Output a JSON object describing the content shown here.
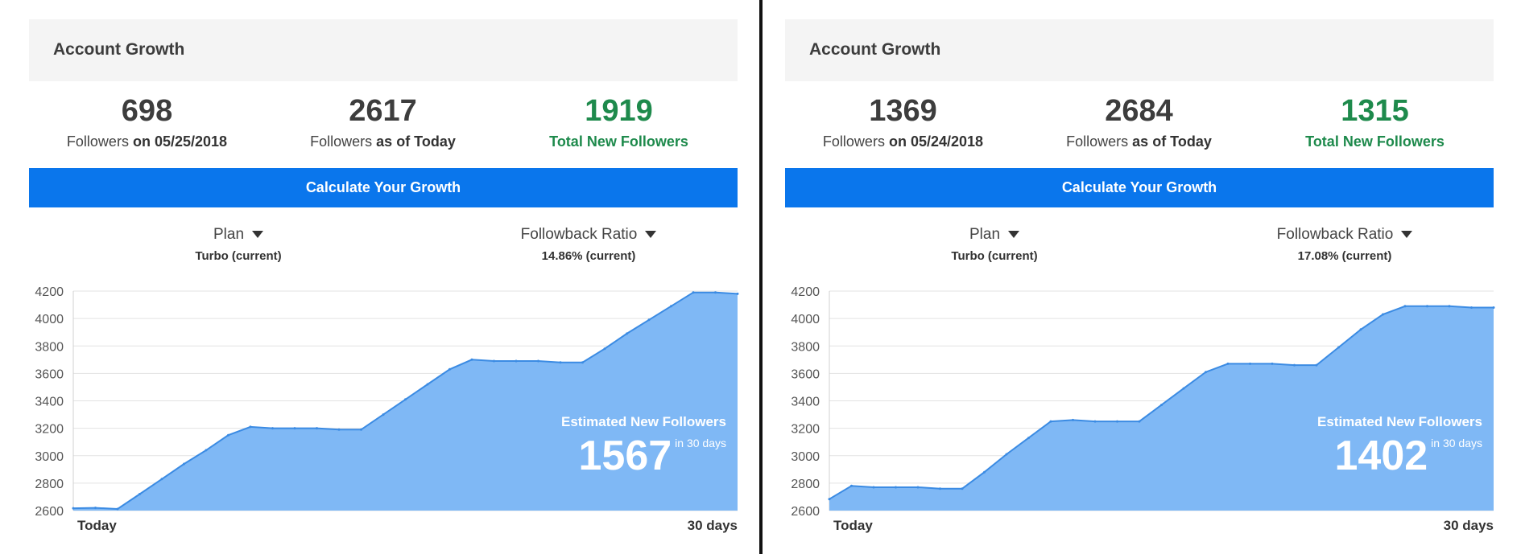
{
  "colors": {
    "accent": "#0a76ec",
    "green": "#1e8a4c",
    "area": "#7fb8f5",
    "line": "#3b8be3"
  },
  "icons": {
    "dropdown": "caret-down-icon"
  },
  "panels": [
    {
      "title": "Account Growth",
      "stats": [
        {
          "value": "698",
          "label_prefix": "Followers",
          "label_bold": "on 05/25/2018"
        },
        {
          "value": "2617",
          "label_prefix": "Followers",
          "label_bold": "as of Today"
        },
        {
          "value": "1919",
          "label": "Total New Followers"
        }
      ],
      "button": "Calculate Your Growth",
      "plan": {
        "label": "Plan",
        "value": "Turbo (current)"
      },
      "ratio": {
        "label": "Followback Ratio",
        "value": "14.86% (current)"
      },
      "estimate": {
        "title": "Estimated New Followers",
        "value": "1567",
        "unit": "in 30 days"
      },
      "x_start": "Today",
      "x_end": "30 days",
      "chart_data": {
        "type": "area",
        "title": "",
        "xlabel": "",
        "ylabel": "",
        "ylim": [
          2600,
          4200
        ],
        "yticks": [
          2600,
          2800,
          3000,
          3200,
          3400,
          3600,
          3800,
          4000,
          4200
        ],
        "grid": true,
        "x": [
          0,
          1,
          2,
          3,
          4,
          5,
          6,
          7,
          8,
          9,
          10,
          11,
          12,
          13,
          14,
          15,
          16,
          17,
          18,
          19,
          20,
          21,
          22,
          23,
          24,
          25,
          26,
          27,
          28,
          29,
          30
        ],
        "series": [
          {
            "values": [
              2617,
              2620,
              2612,
              2720,
              2830,
              2940,
              3040,
              3150,
              3210,
              3200,
              3200,
              3200,
              3190,
              3190,
              3300,
              3410,
              3520,
              3630,
              3700,
              3690,
              3690,
              3690,
              3680,
              3680,
              3780,
              3890,
              3990,
              4090,
              4190,
              4190,
              4180
            ]
          }
        ]
      }
    },
    {
      "title": "Account Growth",
      "stats": [
        {
          "value": "1369",
          "label_prefix": "Followers",
          "label_bold": "on 05/24/2018"
        },
        {
          "value": "2684",
          "label_prefix": "Followers",
          "label_bold": "as of Today"
        },
        {
          "value": "1315",
          "label": "Total New Followers"
        }
      ],
      "button": "Calculate Your Growth",
      "plan": {
        "label": "Plan",
        "value": "Turbo (current)"
      },
      "ratio": {
        "label": "Followback Ratio",
        "value": "17.08% (current)"
      },
      "estimate": {
        "title": "Estimated New Followers",
        "value": "1402",
        "unit": "in 30 days"
      },
      "x_start": "Today",
      "x_end": "30 days",
      "chart_data": {
        "type": "area",
        "title": "",
        "xlabel": "",
        "ylabel": "",
        "ylim": [
          2600,
          4200
        ],
        "yticks": [
          2600,
          2800,
          3000,
          3200,
          3400,
          3600,
          3800,
          4000,
          4200
        ],
        "grid": true,
        "x": [
          0,
          1,
          2,
          3,
          4,
          5,
          6,
          7,
          8,
          9,
          10,
          11,
          12,
          13,
          14,
          15,
          16,
          17,
          18,
          19,
          20,
          21,
          22,
          23,
          24,
          25,
          26,
          27,
          28,
          29,
          30
        ],
        "series": [
          {
            "values": [
              2684,
              2780,
              2770,
              2770,
              2770,
              2760,
              2760,
              2880,
              3010,
              3130,
              3250,
              3260,
              3250,
              3250,
              3250,
              3370,
              3490,
              3610,
              3670,
              3670,
              3670,
              3660,
              3660,
              3790,
              3920,
              4030,
              4090,
              4090,
              4090,
              4080,
              4080
            ]
          }
        ]
      }
    }
  ]
}
